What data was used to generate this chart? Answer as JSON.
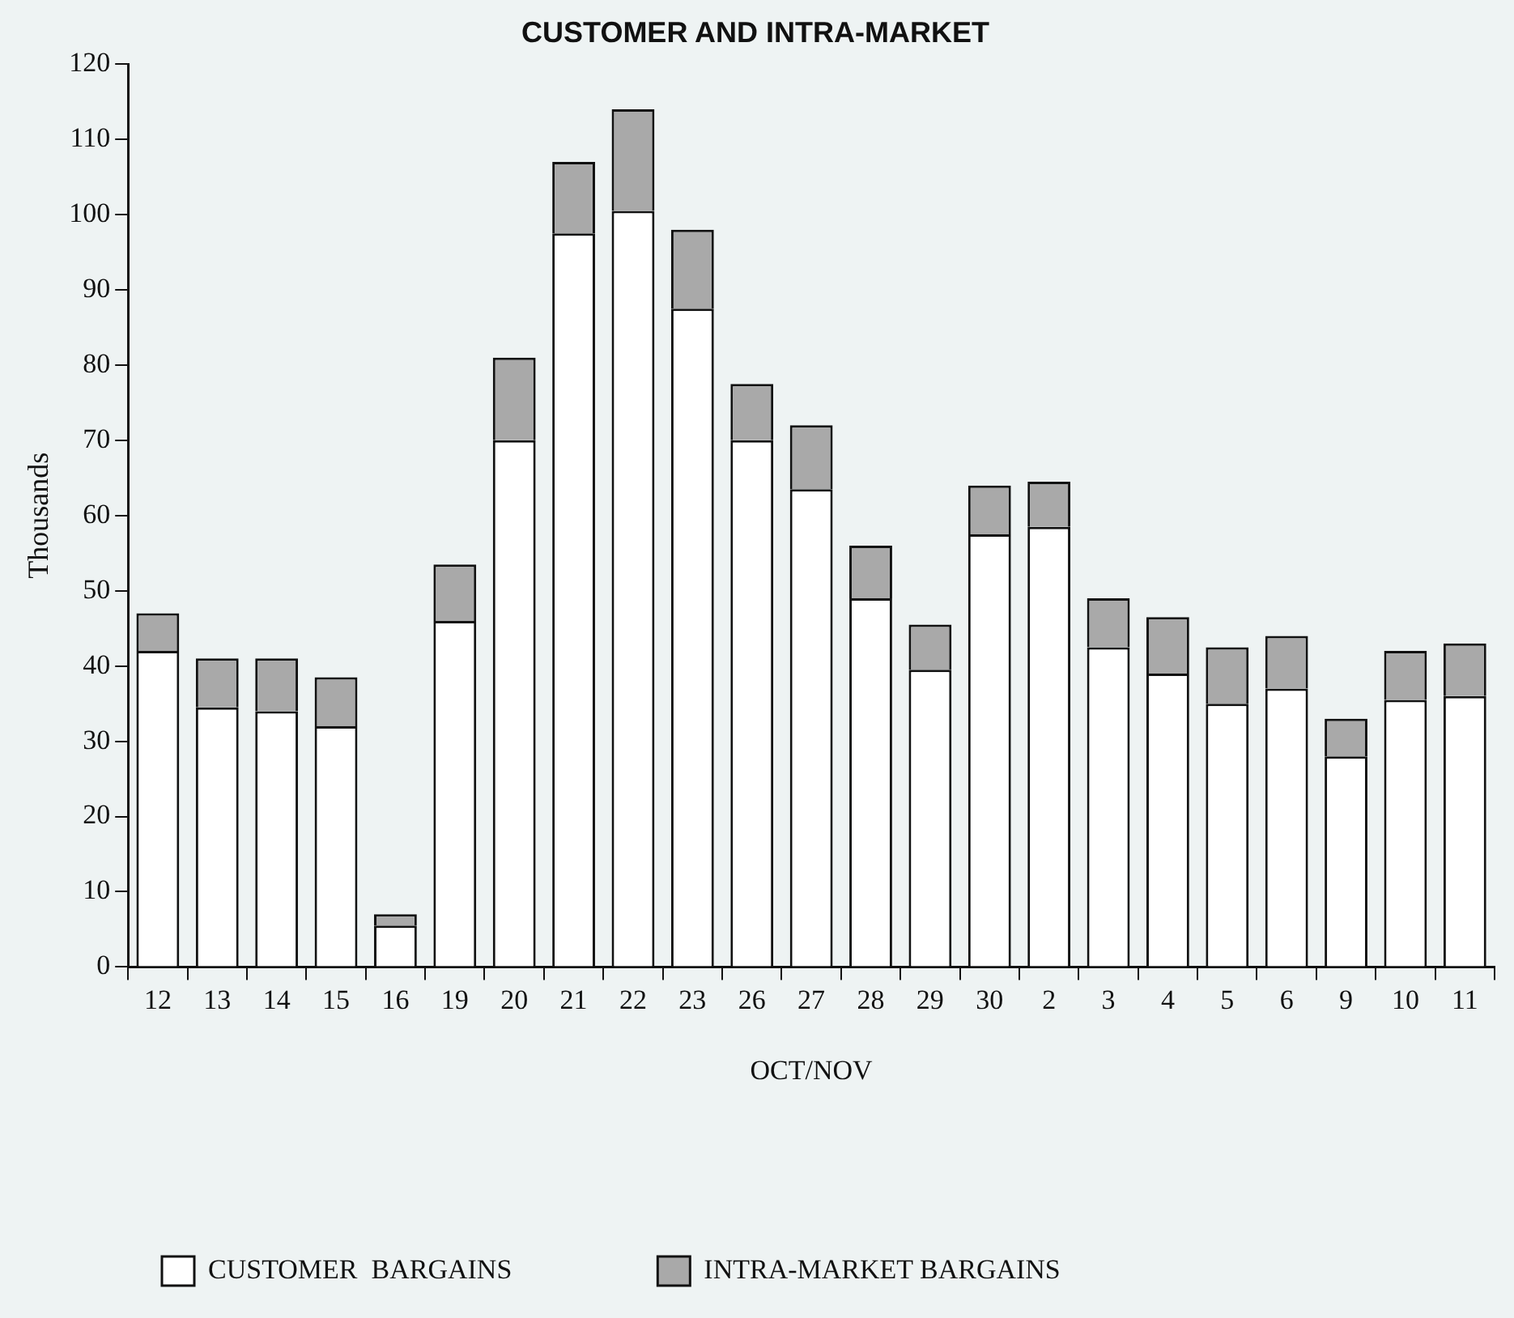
{
  "chart_data": {
    "type": "bar",
    "title": "CUSTOMER AND INTRA-MARKET",
    "xlabel": "OCT/NOV",
    "ylabel": "Thousands",
    "stacked": true,
    "legend": "bottom",
    "grid": false,
    "categories": [
      "12",
      "13",
      "14",
      "15",
      "16",
      "19",
      "20",
      "21",
      "22",
      "23",
      "26",
      "27",
      "28",
      "29",
      "30",
      "2",
      "3",
      "4",
      "5",
      "6",
      "9",
      "10",
      "11"
    ],
    "series": [
      {
        "name": "CUSTOMER  BARGAINS",
        "color": "#ffffff",
        "values": [
          42,
          34.5,
          34,
          32,
          5.5,
          46,
          70,
          97.5,
          100.5,
          87.5,
          70,
          63.5,
          49,
          39.5,
          57.5,
          58.5,
          42.5,
          39,
          35,
          37,
          28,
          35.5,
          36
        ]
      },
      {
        "name": "INTRA-MARKET BARGAINS",
        "color": "#a9a9a9",
        "values": [
          5,
          6.5,
          7,
          6.5,
          1.5,
          7.5,
          11,
          9.5,
          13.5,
          10.5,
          7.5,
          8.5,
          7,
          6,
          6.5,
          6,
          6.5,
          7.5,
          7.5,
          7,
          5,
          6.5,
          7
        ]
      }
    ],
    "ylim": [
      0,
      120
    ],
    "yticks": [
      0,
      10,
      20,
      30,
      40,
      50,
      60,
      70,
      80,
      90,
      100,
      110,
      120
    ]
  }
}
